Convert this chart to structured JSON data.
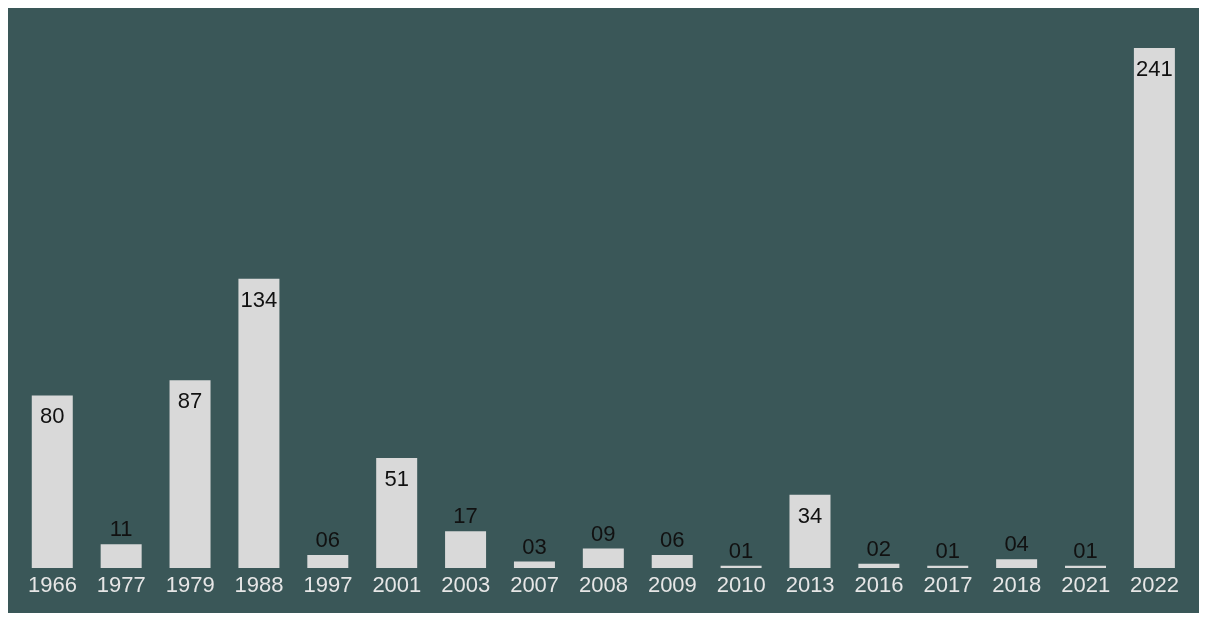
{
  "chart_data": {
    "type": "bar",
    "categories": [
      "1966",
      "1977",
      "1979",
      "1988",
      "1997",
      "2001",
      "2003",
      "2007",
      "2008",
      "2009",
      "2010",
      "2013",
      "2016",
      "2017",
      "2018",
      "2021",
      "2022"
    ],
    "values": [
      80,
      11,
      87,
      134,
      6,
      51,
      17,
      3,
      9,
      6,
      1,
      34,
      2,
      1,
      4,
      1,
      241
    ],
    "value_labels": [
      "80",
      "11",
      "87",
      "134",
      "06",
      "51",
      "17",
      "03",
      "09",
      "06",
      "01",
      "34",
      "02",
      "01",
      "04",
      "01",
      "241"
    ],
    "color": "#d9d9d9",
    "grid": false,
    "legend": false
  }
}
